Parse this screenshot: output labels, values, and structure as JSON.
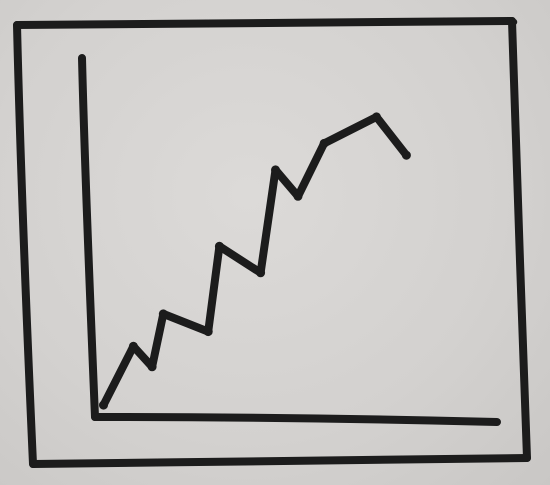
{
  "chart_data": {
    "type": "line",
    "style": "hand-drawn sketch",
    "title": "",
    "xlabel": "",
    "ylabel": "",
    "grid": false,
    "legend": "none",
    "axis_ticks": false,
    "ink_color": "#1c1c1c",
    "paper_color": "#d4d2d0",
    "xlim": [
      0,
      10
    ],
    "ylim": [
      0,
      10
    ],
    "series": [
      {
        "x": [
          0.2,
          1,
          1.5,
          1.8,
          3,
          3.3,
          4.4,
          4.8,
          5.4,
          6.1,
          7.5,
          8.3
        ],
        "y": [
          0.1,
          2.1,
          1.4,
          3.2,
          2.6,
          5.5,
          4.6,
          8.1,
          7.2,
          9.0,
          9.9,
          8.6
        ]
      }
    ]
  }
}
